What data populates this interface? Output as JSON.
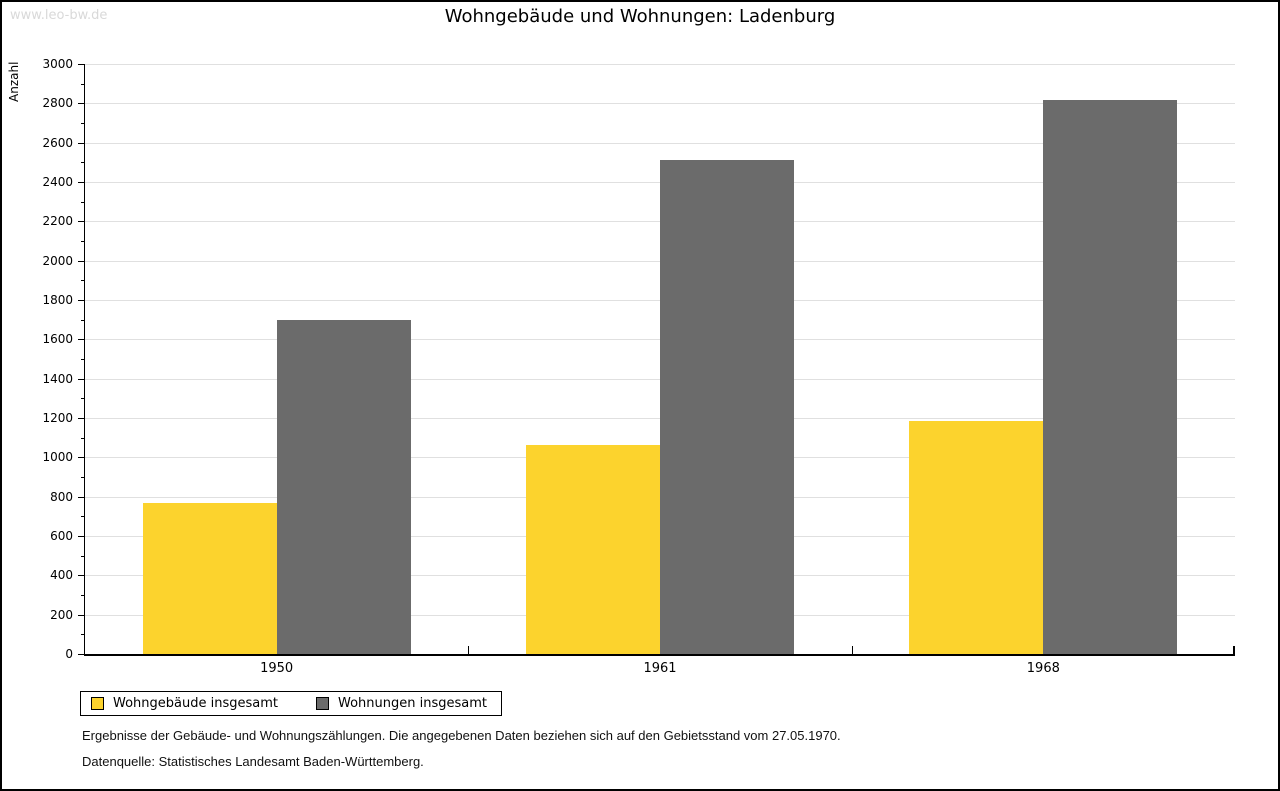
{
  "page": {
    "watermark": "www.leo-bw.de",
    "title": "Wohngebäude und Wohnungen: Ladenburg"
  },
  "chart_data": {
    "type": "bar",
    "title": "Wohngebäude und Wohnungen: Ladenburg",
    "xlabel": "",
    "ylabel": "Anzahl",
    "categories": [
      "1950",
      "1961",
      "1968"
    ],
    "series": [
      {
        "name": "Wohngebäude insgesamt",
        "color": "#fcd32d",
        "values": [
          770,
          1065,
          1185
        ]
      },
      {
        "name": "Wohnungen insgesamt",
        "color": "#6b6b6b",
        "values": [
          1700,
          2510,
          2815
        ]
      }
    ],
    "ylim": [
      0,
      3000
    ],
    "ytick_step": 200,
    "yminor_step": 100,
    "grid": true,
    "legend_position": "bottom-left"
  },
  "footer": {
    "line1": "Ergebnisse der Gebäude- und Wohnungszählungen. Die angegebenen Daten beziehen sich auf den Gebietsstand vom 27.05.1970.",
    "line2": "Datenquelle: Statistisches Landesamt Baden-Württemberg."
  },
  "colors": {
    "grid": "#e0e0e0",
    "axis": "#000000",
    "watermark": "#d9d9d9",
    "background": "#ffffff"
  }
}
